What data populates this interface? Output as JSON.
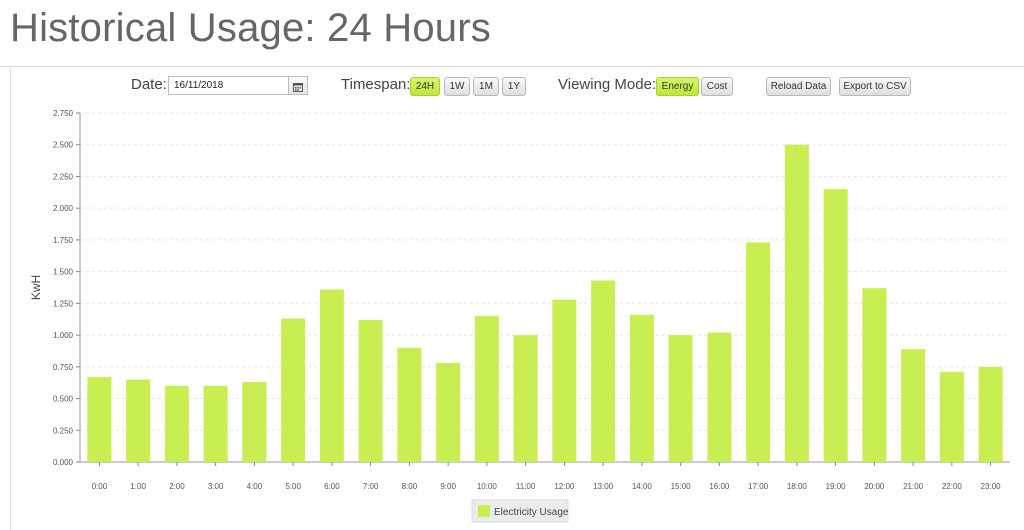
{
  "page": {
    "title": "Historical Usage: 24 Hours"
  },
  "controls": {
    "date_label": "Date:",
    "date_value": "16/11/2018",
    "calendar_icon": "calendar-icon",
    "timespan_label": "Timespan:",
    "timespan_options": [
      {
        "label": "24H",
        "active": true
      },
      {
        "label": "1W",
        "active": false
      },
      {
        "label": "1M",
        "active": false
      },
      {
        "label": "1Y",
        "active": false
      }
    ],
    "viewing_mode_label": "Viewing Mode:",
    "viewing_mode_options": [
      {
        "label": "Energy",
        "active": true
      },
      {
        "label": "Cost",
        "active": false
      }
    ],
    "reload_label": "Reload Data",
    "export_label": "Export to CSV"
  },
  "colors": {
    "bar": "#c9ee52",
    "active_button": "#c6ef4b",
    "grid": "#e6e6e6"
  },
  "chart_data": {
    "type": "bar",
    "ylabel": "KwH",
    "xlabel": "",
    "ylim": [
      0,
      2.75
    ],
    "y_ticks": [
      "0.000",
      "0.250",
      "0.500",
      "0.750",
      "1.000",
      "1.250",
      "1.500",
      "1.750",
      "2.000",
      "2.250",
      "2.500",
      "2.750"
    ],
    "y_tick_values": [
      0,
      0.25,
      0.5,
      0.75,
      1.0,
      1.25,
      1.5,
      1.75,
      2.0,
      2.25,
      2.5,
      2.75
    ],
    "categories": [
      "0:00",
      "1:00",
      "2:00",
      "3:00",
      "4:00",
      "5:00",
      "6:00",
      "7:00",
      "8:00",
      "9:00",
      "10:00",
      "11:00",
      "12:00",
      "13:00",
      "14:00",
      "15:00",
      "16:00",
      "17:00",
      "18:00",
      "19:00",
      "20:00",
      "21:00",
      "22:00",
      "23:00"
    ],
    "series": [
      {
        "name": "Electricity Usage",
        "values": [
          0.67,
          0.65,
          0.6,
          0.6,
          0.63,
          1.13,
          1.36,
          1.12,
          0.9,
          0.78,
          1.15,
          1.0,
          1.28,
          1.43,
          1.16,
          1.0,
          1.02,
          1.73,
          2.5,
          2.15,
          1.37,
          0.89,
          0.71,
          0.75
        ]
      }
    ],
    "grid": true,
    "legend_position": "bottom"
  }
}
